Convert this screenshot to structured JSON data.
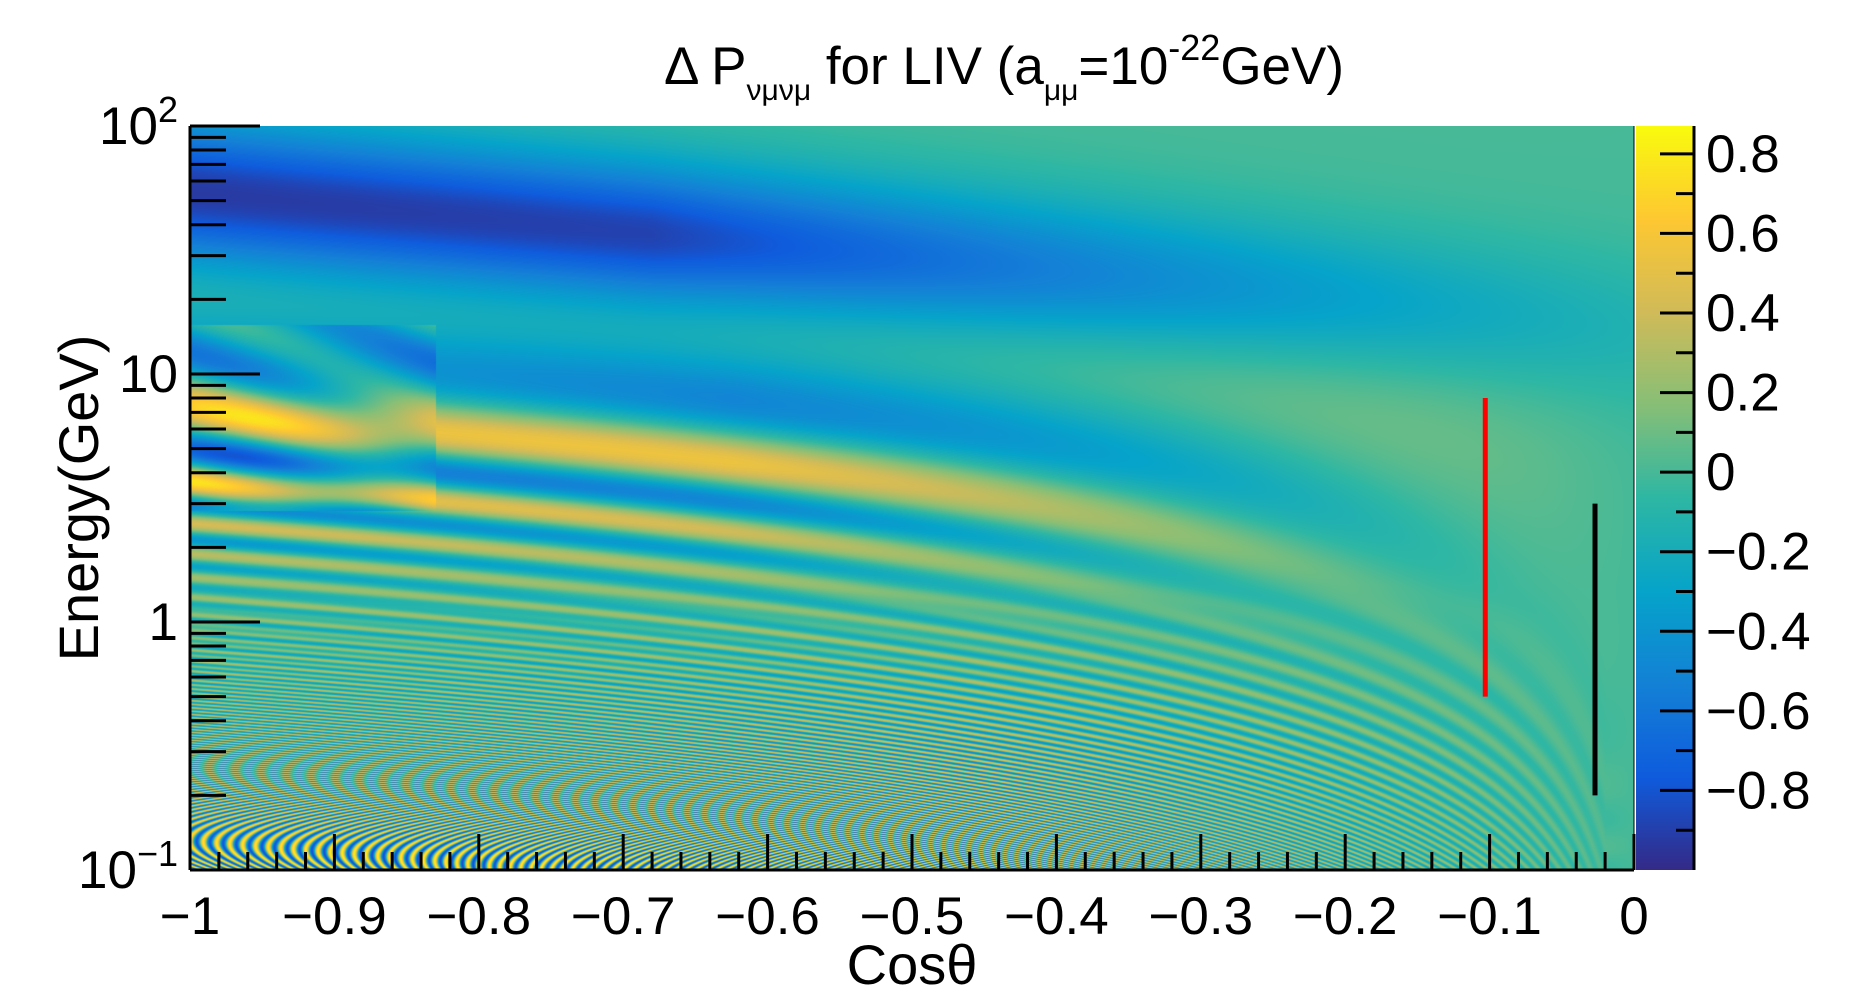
{
  "chart_data": {
    "type": "heatmap",
    "title": {
      "prefix": "Δ P",
      "subscript": "νμνμ",
      "middle": " for LIV (a",
      "subscript2": "μμ",
      "equals": "=10",
      "exponent": "-22",
      "suffix": "GeV)"
    },
    "xlabel": "Cosθ",
    "ylabel": "Energy(GeV)",
    "xlim": [
      -1,
      0
    ],
    "ylim": [
      0.1,
      100
    ],
    "yscale": "log",
    "x_ticks": [
      {
        "value": -1,
        "label": "−1"
      },
      {
        "value": -0.9,
        "label": "−0.9"
      },
      {
        "value": -0.8,
        "label": "−0.8"
      },
      {
        "value": -0.7,
        "label": "−0.7"
      },
      {
        "value": -0.6,
        "label": "−0.6"
      },
      {
        "value": -0.5,
        "label": "−0.5"
      },
      {
        "value": -0.4,
        "label": "−0.4"
      },
      {
        "value": -0.3,
        "label": "−0.3"
      },
      {
        "value": -0.2,
        "label": "−0.2"
      },
      {
        "value": -0.1,
        "label": "−0.1"
      },
      {
        "value": 0,
        "label": "0"
      }
    ],
    "y_ticks": [
      {
        "value": 0.1,
        "base": "10",
        "exp": "−1",
        "label": ""
      },
      {
        "value": 1,
        "base": "",
        "exp": "",
        "label": "1"
      },
      {
        "value": 10,
        "base": "",
        "exp": "",
        "label": "10"
      },
      {
        "value": 100,
        "base": "10",
        "exp": "2",
        "label": ""
      }
    ],
    "colorbar": {
      "zlim": [
        -1,
        0.87
      ],
      "ticks": [
        {
          "value": 0.8,
          "label": "0.8"
        },
        {
          "value": 0.6,
          "label": "0.6"
        },
        {
          "value": 0.4,
          "label": "0.4"
        },
        {
          "value": 0.2,
          "label": "0.2"
        },
        {
          "value": 0,
          "label": "0"
        },
        {
          "value": -0.2,
          "label": "−0.2"
        },
        {
          "value": -0.4,
          "label": "−0.4"
        },
        {
          "value": -0.6,
          "label": "−0.6"
        },
        {
          "value": -0.8,
          "label": "−0.8"
        }
      ],
      "palette": [
        "#352a87",
        "#0f5cdd",
        "#1481d6",
        "#06a4ca",
        "#2eb7a4",
        "#87bf77",
        "#d1bb59",
        "#fec832",
        "#f9fb0e"
      ]
    },
    "markers": [
      {
        "name": "red-line",
        "color": "#ff0000",
        "x": -0.103,
        "y_range": [
          0.5,
          8
        ]
      },
      {
        "name": "black-line",
        "color": "#000000",
        "x": -0.027,
        "y_range": [
          0.2,
          3
        ]
      }
    ],
    "grid": false
  }
}
